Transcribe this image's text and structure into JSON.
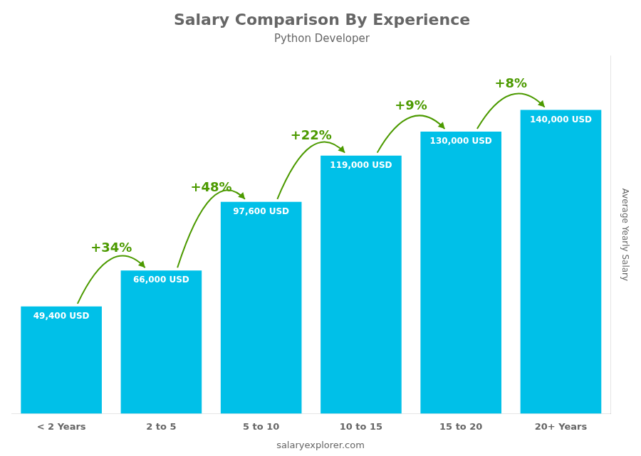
{
  "chart_data": {
    "type": "bar",
    "title": "Salary Comparison By Experience",
    "subtitle": "Python Developer",
    "ylabel": "Average Yearly Salary",
    "footer": "salaryexplorer.com",
    "categories": [
      "< 2 Years",
      "2 to 5",
      "5 to 10",
      "10 to 15",
      "15 to 20",
      "20+ Years"
    ],
    "values": [
      49400,
      66000,
      97600,
      119000,
      130000,
      140000
    ],
    "value_labels": [
      "49,400 USD",
      "66,000 USD",
      "97,600 USD",
      "119,000 USD",
      "130,000 USD",
      "140,000 USD"
    ],
    "data_labels": true,
    "annotations": [
      "+34%",
      "+48%",
      "+22%",
      "+9%",
      "+8%"
    ],
    "color": "#00c0e8",
    "ylim": [
      0,
      165000
    ],
    "grid": false,
    "tick_labels": "x"
  }
}
